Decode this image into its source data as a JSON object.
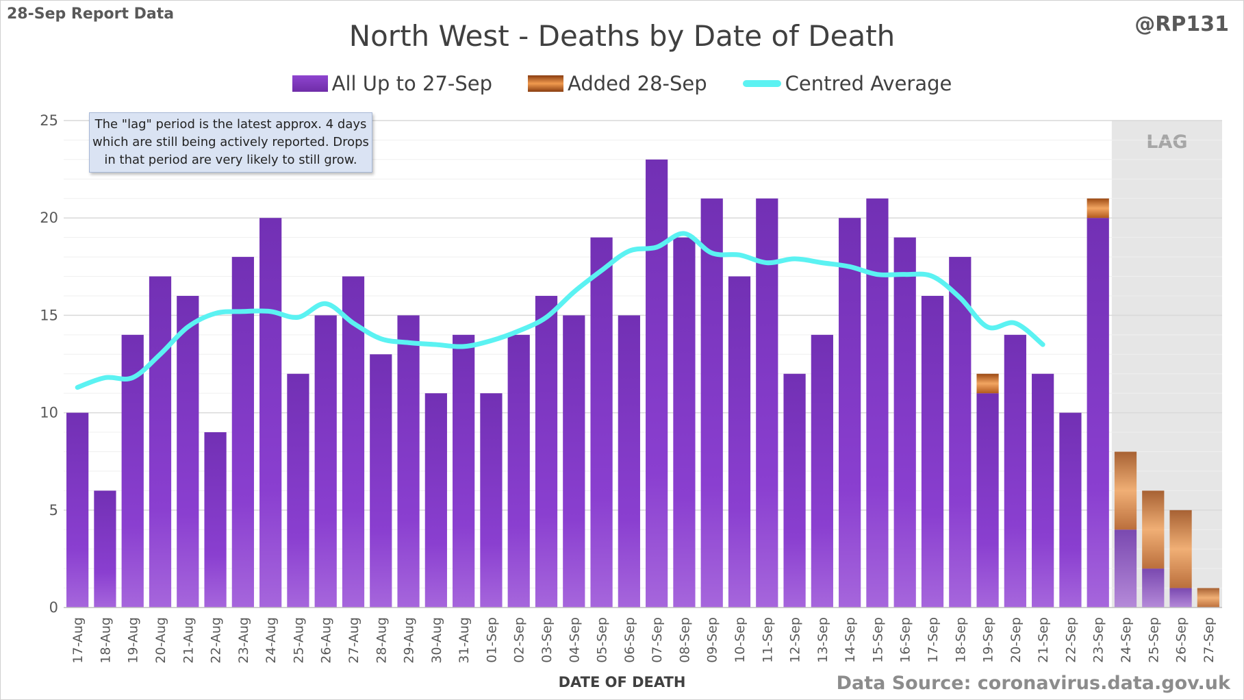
{
  "corner": {
    "report_label": "28-Sep Report Data",
    "handle": "@RP131"
  },
  "chart_data": {
    "type": "bar",
    "stacked": true,
    "title": "North West - Deaths by Date of Death",
    "xlabel": "DATE OF DEATH",
    "ylabel": "",
    "ylim": [
      0,
      25
    ],
    "yticks": [
      0,
      5,
      10,
      15,
      20,
      25
    ],
    "grid": true,
    "legend_position": "top",
    "categories": [
      "17-Aug",
      "18-Aug",
      "19-Aug",
      "20-Aug",
      "21-Aug",
      "22-Aug",
      "23-Aug",
      "24-Aug",
      "25-Aug",
      "26-Aug",
      "27-Aug",
      "28-Aug",
      "29-Aug",
      "30-Aug",
      "31-Aug",
      "01-Sep",
      "02-Sep",
      "03-Sep",
      "04-Sep",
      "05-Sep",
      "06-Sep",
      "07-Sep",
      "08-Sep",
      "09-Sep",
      "10-Sep",
      "11-Sep",
      "12-Sep",
      "13-Sep",
      "14-Sep",
      "15-Sep",
      "16-Sep",
      "17-Sep",
      "18-Sep",
      "19-Sep",
      "20-Sep",
      "21-Sep",
      "22-Sep",
      "23-Sep",
      "24-Sep",
      "25-Sep",
      "26-Sep",
      "27-Sep"
    ],
    "series": [
      {
        "name": "All Up to 27-Sep",
        "kind": "bar",
        "color": "#7b35c0",
        "values": [
          10,
          6,
          14,
          17,
          16,
          9,
          18,
          20,
          12,
          15,
          17,
          13,
          15,
          11,
          14,
          11,
          14,
          16,
          15,
          19,
          15,
          23,
          19,
          21,
          17,
          21,
          12,
          14,
          20,
          21,
          19,
          16,
          18,
          11,
          14,
          12,
          10,
          20,
          4,
          2,
          1,
          0
        ]
      },
      {
        "name": "Added 28-Sep",
        "kind": "bar",
        "color": "#e07b35",
        "values": [
          0,
          0,
          0,
          0,
          0,
          0,
          0,
          0,
          0,
          0,
          0,
          0,
          0,
          0,
          0,
          0,
          0,
          0,
          0,
          0,
          0,
          0,
          0,
          0,
          0,
          0,
          0,
          0,
          0,
          0,
          0,
          0,
          0,
          1,
          0,
          0,
          0,
          1,
          4,
          4,
          4,
          1
        ]
      },
      {
        "name": "Centred Average",
        "kind": "line",
        "color": "#5bf2f2",
        "values": [
          11.3,
          11.8,
          11.8,
          13.0,
          14.4,
          15.1,
          15.2,
          15.2,
          14.9,
          15.6,
          14.6,
          13.8,
          13.6,
          13.5,
          13.4,
          13.7,
          14.2,
          14.9,
          16.2,
          17.3,
          18.3,
          18.5,
          19.2,
          18.2,
          18.1,
          17.7,
          17.9,
          17.7,
          17.5,
          17.1,
          17.1,
          17.0,
          15.9,
          14.4,
          14.6,
          13.5,
          null,
          null,
          null,
          null,
          null,
          null
        ]
      }
    ],
    "annotations": [
      {
        "text": "The \"lag\" period is the latest approx. 4 days which are still being actively reported. Drops in that period are very likely to still grow."
      },
      {
        "text": "LAG",
        "region": [
          "24-Sep",
          "27-Sep"
        ]
      }
    ],
    "source": "Data Source: coronavirus.data.gov.uk"
  },
  "colors": {
    "lag_shade": "#e6e6e6",
    "grid": "#d9d9d9",
    "axis_text": "#595959"
  }
}
